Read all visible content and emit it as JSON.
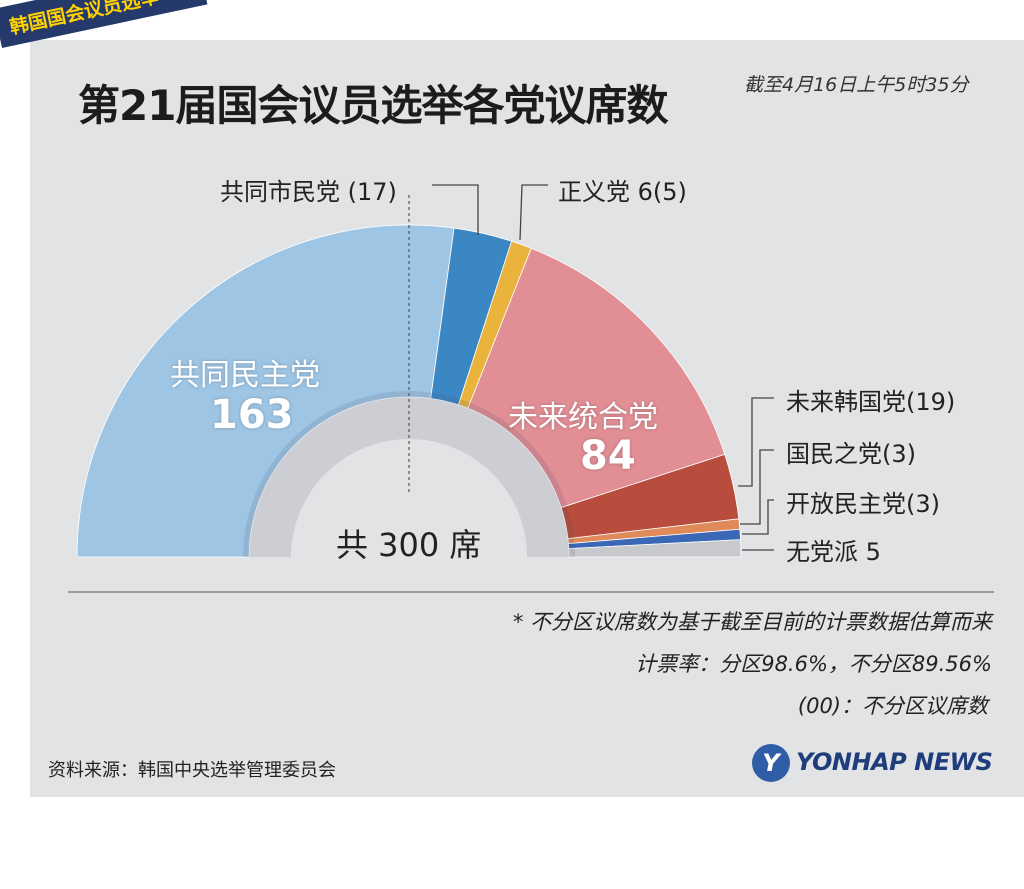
{
  "banner": {
    "tag": "韩国国会议员选举",
    "title": "第21届国会议员选举各党议席数",
    "as_of": "截至4月16日上午5时35分"
  },
  "chart_data": {
    "type": "pie",
    "shape": "half-donut",
    "total_label": "共 300 席",
    "total": 300,
    "slices": [
      {
        "name": "共同民主党",
        "value": 163,
        "color": "#9ec5e4"
      },
      {
        "name": "共同市民党",
        "value": 17,
        "color": "#3a87c3"
      },
      {
        "name": "正义党",
        "value": 6,
        "color": "#e9b33c"
      },
      {
        "name": "未来统合党",
        "value": 84,
        "color": "#e18e95"
      },
      {
        "name": "未来韩国党",
        "value": 19,
        "color": "#b84c3d"
      },
      {
        "name": "国民之党",
        "value": 3,
        "color": "#e08a5a"
      },
      {
        "name": "开放民主党",
        "value": 3,
        "color": "#3a68b6"
      },
      {
        "name": "无党派",
        "value": 5,
        "color": "#c8c9cc"
      }
    ],
    "labels": {
      "big_name": "共同民主党",
      "big_value": "163",
      "red_name": "未来统合党",
      "red_value": "84",
      "community": "共同市民党 (17)",
      "justice": "正义党 6(5)",
      "future_korea": "未来韩国党(19)",
      "peoples": "国民之党(3)",
      "open_democratic": "开放民主党(3)",
      "independents": "无党派 5"
    }
  },
  "notes": {
    "line1": "* 不分区议席数为基于截至目前的计票数据估算而来",
    "line2": "计票率：分区98.6%，不分区89.56%",
    "line3": "(00)：不分区议席数"
  },
  "footer": {
    "source": "资料来源：韩国中央选举管理委员会",
    "logo_mark": "Y",
    "logo_text": "YONHAP NEWS"
  }
}
